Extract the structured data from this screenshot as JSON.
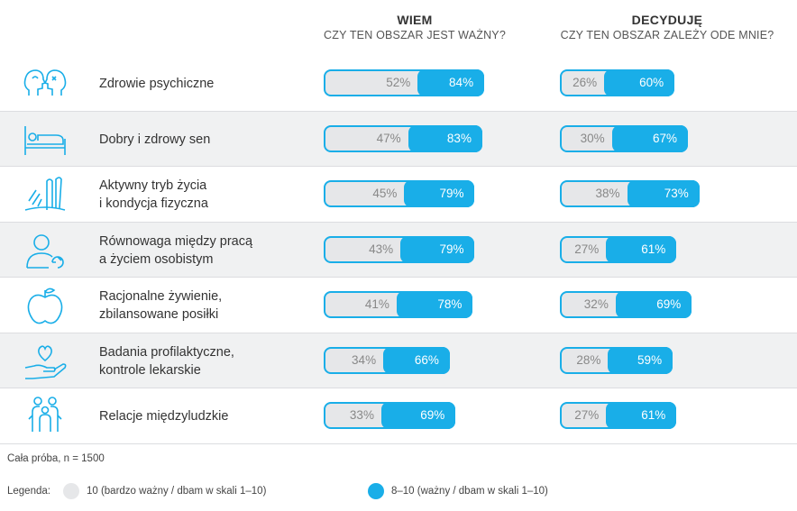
{
  "headers": {
    "left_title": "WIEM",
    "left_subtitle": "CZY TEN OBSZAR JEST WAŻNY?",
    "right_title": "DECYDUJĘ",
    "right_subtitle": "CZY TEN OBSZAR ZALEŻY ODE MNIE?"
  },
  "chart_data": {
    "type": "bar",
    "categories": [
      "Zdrowie psychiczne",
      "Dobry i zdrowy sen",
      "Aktywny tryb życia\ni kondycja fizyczna",
      "Równowaga między pracą\na życiem osobistym",
      "Racjonalne żywienie,\nzbilansowane posiłki",
      "Badania profilaktyczne,\nkontrole lekarskie",
      "Relacje międzyludzkie"
    ],
    "icons": [
      "heads-icon",
      "bed-icon",
      "fitness-icon",
      "work-life-balance-icon",
      "apple-icon",
      "heart-hand-icon",
      "people-icon"
    ],
    "panels": [
      {
        "title": "WIEM",
        "series": [
          {
            "name": "10 (bardzo ważny / dbam w skali 1–10)",
            "values": [
              52,
              47,
              45,
              43,
              41,
              34,
              33
            ]
          },
          {
            "name": "8–10 (ważny / dbam w skali 1–10)",
            "values": [
              84,
              83,
              79,
              79,
              78,
              66,
              69
            ]
          }
        ]
      },
      {
        "title": "DECYDUJĘ",
        "series": [
          {
            "name": "10 (bardzo ważny / dbam w skali 1–10)",
            "values": [
              26,
              30,
              38,
              27,
              32,
              28,
              27
            ]
          },
          {
            "name": "8–10 (ważny / dbam w skali 1–10)",
            "values": [
              60,
              67,
              73,
              61,
              69,
              59,
              61
            ]
          }
        ]
      }
    ],
    "colors": {
      "grey": "#e6e7e9",
      "blue": "#19aee8"
    }
  },
  "footer": {
    "sample": "Cała próba, n = 1500",
    "legend_label": "Legenda:",
    "legend_grey": "10 (bardzo ważny / dbam w skali 1–10)",
    "legend_blue": "8–10 (ważny / dbam w skali 1–10)"
  }
}
